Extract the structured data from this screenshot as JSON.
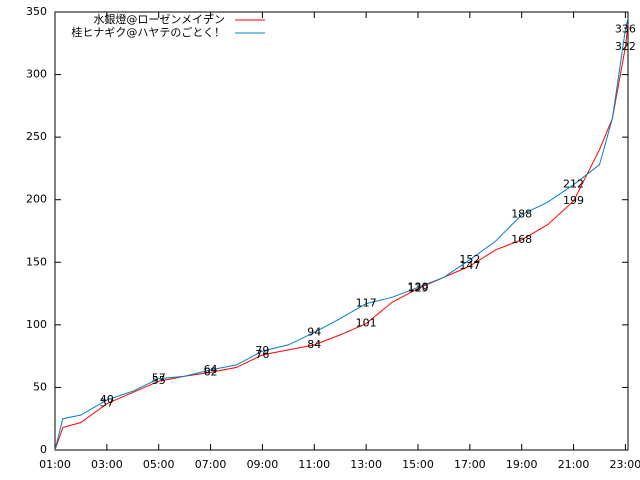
{
  "chart_data": {
    "type": "line",
    "series": [
      {
        "name": "水銀燈@ローゼンメイデン",
        "color": "#ff0000",
        "x": [
          1,
          1.3,
          2,
          3,
          4,
          5,
          6,
          7,
          8,
          9,
          10,
          11,
          12,
          13,
          14,
          15,
          16,
          17,
          18,
          19,
          20,
          21,
          22,
          22.5,
          23,
          23.1
        ],
        "values": [
          0,
          18,
          22,
          37,
          46,
          55,
          59,
          62,
          66,
          76,
          80,
          84,
          92,
          101,
          118,
          129,
          138,
          147,
          160,
          168,
          180,
          199,
          240,
          265,
          322,
          340
        ],
        "value_labels": [
          null,
          null,
          null,
          "37",
          null,
          "55",
          null,
          "62",
          null,
          "76",
          null,
          "84",
          null,
          "101",
          null,
          "129",
          null,
          "147",
          null,
          "168",
          null,
          "199",
          null,
          null,
          "322",
          null
        ]
      },
      {
        "name": "桂ヒナギク@ハヤテのごとく！",
        "color": "#0080c0",
        "x": [
          1,
          1.3,
          2,
          3,
          4,
          5,
          6,
          7,
          8,
          9,
          10,
          11,
          12,
          13,
          14,
          15,
          16,
          17,
          18,
          19,
          20,
          21,
          22,
          22.5,
          23,
          23.1
        ],
        "values": [
          0,
          25,
          28,
          40,
          47,
          57,
          59,
          64,
          68,
          79,
          84,
          94,
          105,
          117,
          122,
          130,
          138,
          152,
          167,
          188,
          198,
          212,
          228,
          265,
          336,
          345
        ],
        "value_labels": [
          null,
          null,
          null,
          "40",
          null,
          "57",
          null,
          "64",
          null,
          "79",
          null,
          "94",
          null,
          "117",
          null,
          "130",
          null,
          "152",
          null,
          "188",
          null,
          "212",
          null,
          null,
          "336",
          null
        ]
      }
    ],
    "xlim": [
      1,
      23.1
    ],
    "xticks": [
      {
        "value": 1,
        "label": "01:00"
      },
      {
        "value": 3,
        "label": "03:00"
      },
      {
        "value": 5,
        "label": "05:00"
      },
      {
        "value": 7,
        "label": "07:00"
      },
      {
        "value": 9,
        "label": "09:00"
      },
      {
        "value": 11,
        "label": "11:00"
      },
      {
        "value": 13,
        "label": "13:00"
      },
      {
        "value": 15,
        "label": "15:00"
      },
      {
        "value": 17,
        "label": "17:00"
      },
      {
        "value": 19,
        "label": "19:00"
      },
      {
        "value": 21,
        "label": "21:00"
      },
      {
        "value": 23,
        "label": "23:00"
      }
    ],
    "ylim": [
      0,
      350
    ],
    "yticks": [
      0,
      50,
      100,
      150,
      200,
      250,
      300,
      350
    ],
    "legend": "top-left"
  }
}
